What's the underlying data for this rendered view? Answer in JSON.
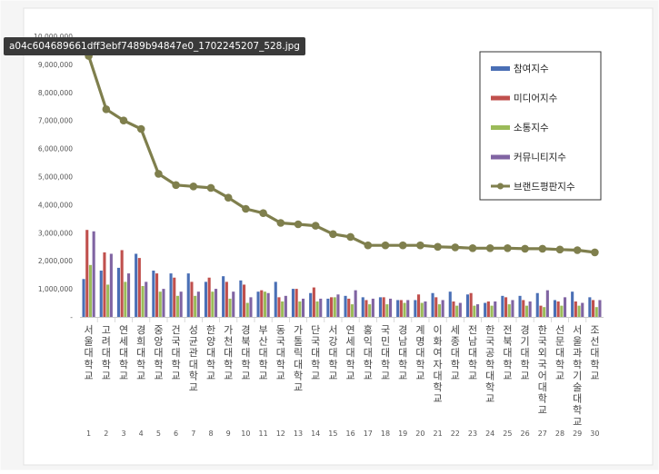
{
  "file_label": "a04c604689661dff3ebf7489b94847e0_1702245207_528.jpg",
  "chart_data": {
    "type": "bar",
    "title": "",
    "xlabel": "",
    "ylabel": "",
    "ylim": [
      0,
      10000000
    ],
    "y_ticks": [
      "-",
      "1,000,000",
      "2,000,000",
      "3,000,000",
      "4,000,000",
      "5,000,000",
      "6,000,000",
      "7,000,000",
      "8,000,000",
      "9,000,000",
      "10,000,000"
    ],
    "grid": false,
    "legend_position": "top-right",
    "categories": [
      "서울대학교",
      "고려대학교",
      "연세대학교",
      "경희대학교",
      "중앙대학교",
      "건국대학교",
      "성균관대학교",
      "한양대학교",
      "가천대학교",
      "경북대학교",
      "부산대학교",
      "동국대학교",
      "가톨릭대학교",
      "단국대학교",
      "서강대학교",
      "연세대학교",
      "홍익대학교",
      "국민대학교",
      "경남대학교",
      "계명대학교",
      "이화여자대학교",
      "세종대학교",
      "전남대학교",
      "한국공학대학교",
      "전북대학교",
      "경기대학교",
      "한국외국어대학교",
      "선문대학교",
      "서울과학기술대학교",
      "조선대학교"
    ],
    "ranks": [
      "1",
      "2",
      "3",
      "4",
      "5",
      "6",
      "7",
      "8",
      "9",
      "10",
      "11",
      "12",
      "13",
      "14",
      "15",
      "16",
      "17",
      "18",
      "19",
      "20",
      "21",
      "22",
      "23",
      "24",
      "25",
      "26",
      "27",
      "28",
      "29",
      "30"
    ],
    "series": [
      {
        "name": "참여지수",
        "type": "bar",
        "color": "#4a6fb5",
        "values": [
          1350000,
          1650000,
          1750000,
          2250000,
          1650000,
          1550000,
          1550000,
          1250000,
          1450000,
          1300000,
          900000,
          1250000,
          1000000,
          850000,
          650000,
          750000,
          700000,
          700000,
          600000,
          600000,
          850000,
          900000,
          800000,
          500000,
          750000,
          750000,
          850000,
          600000,
          900000,
          700000
        ]
      },
      {
        "name": "미디어지수",
        "type": "bar",
        "color": "#c0504d",
        "values": [
          3100000,
          2300000,
          2380000,
          2100000,
          1550000,
          1400000,
          1250000,
          1400000,
          1250000,
          1150000,
          950000,
          700000,
          1000000,
          1050000,
          700000,
          650000,
          600000,
          700000,
          600000,
          800000,
          700000,
          550000,
          850000,
          550000,
          700000,
          600000,
          400000,
          550000,
          550000,
          600000
        ]
      },
      {
        "name": "소통지수",
        "type": "bar",
        "color": "#9bbb59",
        "values": [
          1850000,
          1150000,
          1250000,
          1100000,
          900000,
          750000,
          750000,
          900000,
          650000,
          500000,
          900000,
          550000,
          550000,
          550000,
          700000,
          450000,
          450000,
          450000,
          500000,
          500000,
          450000,
          400000,
          400000,
          400000,
          450000,
          400000,
          350000,
          400000,
          400000,
          350000
        ]
      },
      {
        "name": "커뮤니티지수",
        "type": "bar",
        "color": "#8064a2",
        "values": [
          3050000,
          2250000,
          1550000,
          1250000,
          1000000,
          900000,
          900000,
          1000000,
          900000,
          700000,
          850000,
          750000,
          650000,
          650000,
          800000,
          950000,
          650000,
          650000,
          600000,
          550000,
          600000,
          500000,
          450000,
          550000,
          600000,
          550000,
          950000,
          700000,
          500000,
          600000
        ]
      },
      {
        "name": "브랜드평판지수",
        "type": "line",
        "color": "#7f7f4d",
        "values": [
          9300000,
          7400000,
          7000000,
          6700000,
          5100000,
          4700000,
          4650000,
          4600000,
          4250000,
          3850000,
          3700000,
          3350000,
          3300000,
          3250000,
          2950000,
          2850000,
          2550000,
          2550000,
          2550000,
          2550000,
          2500000,
          2480000,
          2450000,
          2450000,
          2450000,
          2430000,
          2430000,
          2400000,
          2380000,
          2300000
        ]
      }
    ]
  }
}
